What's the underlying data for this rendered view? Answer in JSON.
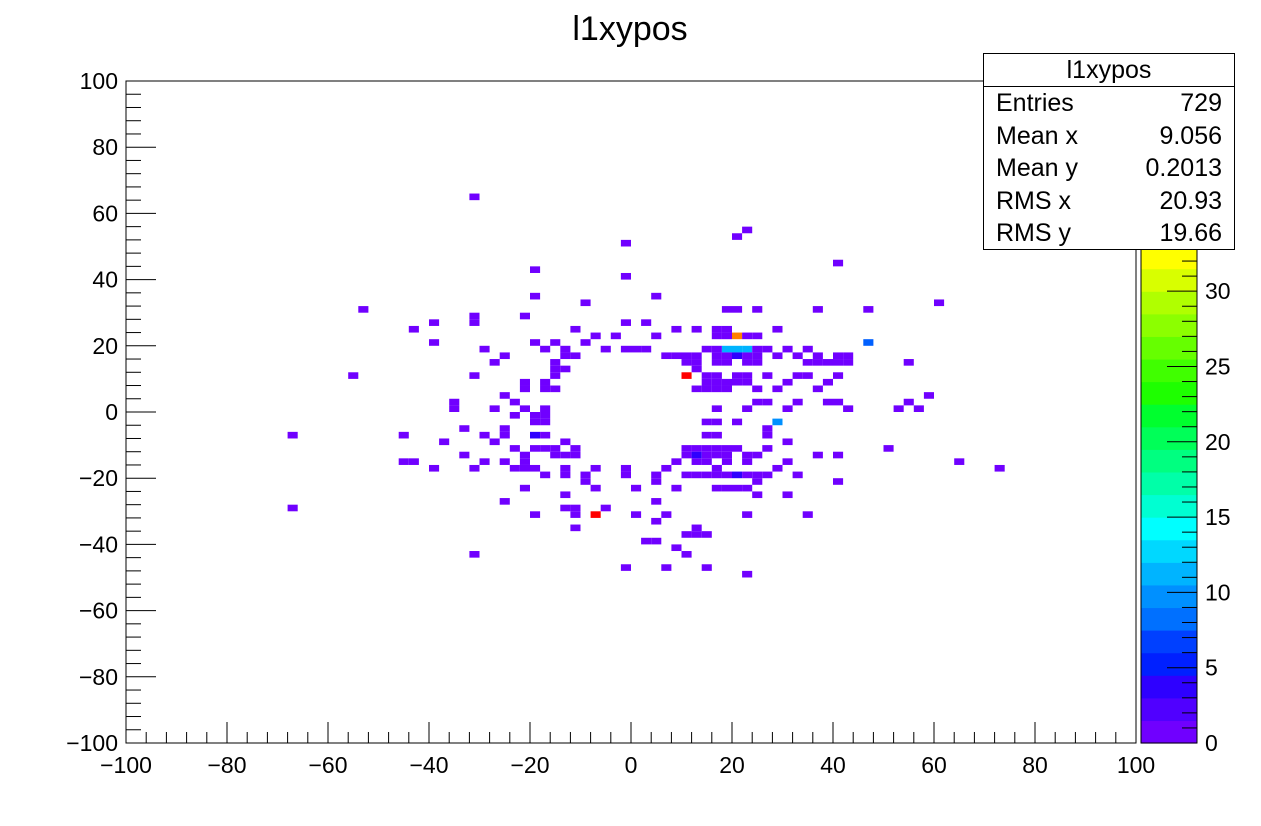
{
  "chart_data": {
    "type": "heatmap",
    "title": "l1xypos",
    "xlim": [
      -100,
      100
    ],
    "ylim": [
      -100,
      100
    ],
    "x_ticks": [
      "−100",
      "−80",
      "−60",
      "−40",
      "−20",
      "0",
      "20",
      "40",
      "60",
      "80",
      "100"
    ],
    "y_ticks": [
      "−100",
      "−80",
      "−60",
      "−40",
      "−20",
      "0",
      "20",
      "40",
      "60",
      "80",
      "100"
    ],
    "colorbar": {
      "range": [
        0,
        33
      ],
      "ticks": [
        "0",
        "5",
        "10",
        "15",
        "20",
        "25",
        "30"
      ],
      "palette": [
        "#7000ff",
        "#5000ff",
        "#2e00ff",
        "#0020ff",
        "#0040ff",
        "#0070ff",
        "#0090ff",
        "#00b4ff",
        "#00d8ff",
        "#00ffff",
        "#00ffd2",
        "#00ffa8",
        "#00ff80",
        "#00ff58",
        "#00ff2e",
        "#1eff00",
        "#40ff00",
        "#66ff00",
        "#8cff00",
        "#b0ff00",
        "#d8ff00",
        "#ffff00"
      ]
    },
    "bin_width": 2,
    "bins": [
      [
        -31,
        65
      ],
      [
        23,
        55
      ],
      [
        21,
        53
      ],
      [
        -1,
        51
      ],
      [
        41,
        45
      ],
      [
        -19,
        43
      ],
      [
        -1,
        41
      ],
      [
        -19,
        35
      ],
      [
        -9,
        33
      ],
      [
        5,
        35
      ],
      [
        -53,
        31
      ],
      [
        -21,
        29
      ],
      [
        -31,
        29
      ],
      [
        19,
        31
      ],
      [
        21,
        31
      ],
      [
        25,
        31
      ],
      [
        37,
        31
      ],
      [
        47,
        31
      ],
      [
        61,
        33
      ],
      [
        -39,
        27
      ],
      [
        -43,
        25
      ],
      [
        -31,
        27
      ],
      [
        -11,
        25
      ],
      [
        -1,
        27
      ],
      [
        3,
        27
      ],
      [
        9,
        25
      ],
      [
        13,
        25
      ],
      [
        17,
        25
      ],
      [
        19,
        25
      ],
      [
        29,
        25
      ],
      [
        -39,
        21
      ],
      [
        -15,
        21
      ],
      [
        -7,
        23
      ],
      [
        -3,
        23
      ],
      [
        5,
        23
      ],
      [
        17,
        23
      ],
      [
        19,
        23
      ],
      [
        21,
        23,
        "o"
      ],
      [
        23,
        23
      ],
      [
        25,
        23
      ],
      [
        -29,
        19
      ],
      [
        -19,
        21
      ],
      [
        -9,
        21
      ],
      [
        -5,
        19
      ],
      [
        3,
        19
      ],
      [
        15,
        19
      ],
      [
        17,
        19
      ],
      [
        19,
        19,
        "c"
      ],
      [
        21,
        19,
        "c"
      ],
      [
        23,
        19,
        "c"
      ],
      [
        25,
        19
      ],
      [
        27,
        19
      ],
      [
        31,
        19
      ],
      [
        35,
        19
      ],
      [
        47,
        21,
        "b2"
      ],
      [
        -25,
        17
      ],
      [
        -17,
        19
      ],
      [
        -13,
        19
      ],
      [
        -1,
        19
      ],
      [
        1,
        19
      ],
      [
        7,
        17
      ],
      [
        9,
        17
      ],
      [
        11,
        17
      ],
      [
        13,
        17
      ],
      [
        17,
        17
      ],
      [
        19,
        17
      ],
      [
        21,
        17,
        "b1"
      ],
      [
        23,
        17
      ],
      [
        25,
        17
      ],
      [
        29,
        17
      ],
      [
        33,
        17
      ],
      [
        37,
        17
      ],
      [
        41,
        17
      ],
      [
        43,
        17
      ],
      [
        55,
        15
      ],
      [
        -27,
        15
      ],
      [
        -15,
        15
      ],
      [
        -13,
        17
      ],
      [
        -11,
        17
      ],
      [
        11,
        15
      ],
      [
        13,
        15
      ],
      [
        17,
        15
      ],
      [
        19,
        15
      ],
      [
        23,
        15
      ],
      [
        25,
        15
      ],
      [
        35,
        15
      ],
      [
        37,
        15
      ],
      [
        39,
        15
      ],
      [
        41,
        15
      ],
      [
        43,
        15
      ],
      [
        -55,
        11
      ],
      [
        -31,
        11
      ],
      [
        -15,
        13
      ],
      [
        -13,
        13
      ],
      [
        11,
        11,
        "r"
      ],
      [
        13,
        13
      ],
      [
        15,
        11
      ],
      [
        17,
        11
      ],
      [
        21,
        11
      ],
      [
        23,
        11
      ],
      [
        27,
        11
      ],
      [
        33,
        11
      ],
      [
        35,
        11
      ],
      [
        41,
        11
      ],
      [
        -21,
        9
      ],
      [
        -17,
        9
      ],
      [
        -15,
        11
      ],
      [
        15,
        9
      ],
      [
        17,
        9
      ],
      [
        19,
        9
      ],
      [
        21,
        9
      ],
      [
        23,
        9
      ],
      [
        31,
        9
      ],
      [
        39,
        9
      ],
      [
        -25,
        5
      ],
      [
        -21,
        7
      ],
      [
        -17,
        7
      ],
      [
        -15,
        7
      ],
      [
        13,
        7
      ],
      [
        15,
        7
      ],
      [
        17,
        7
      ],
      [
        19,
        7
      ],
      [
        25,
        7
      ],
      [
        29,
        7
      ],
      [
        37,
        7
      ],
      [
        59,
        5
      ],
      [
        -35,
        3
      ],
      [
        -27,
        1
      ],
      [
        -23,
        3
      ],
      [
        -21,
        1
      ],
      [
        -17,
        1
      ],
      [
        -35,
        1
      ],
      [
        25,
        3
      ],
      [
        27,
        3
      ],
      [
        33,
        3
      ],
      [
        39,
        3
      ],
      [
        41,
        3
      ],
      [
        43,
        1
      ],
      [
        55,
        3
      ],
      [
        57,
        1
      ],
      [
        -23,
        -1
      ],
      [
        -19,
        -1
      ],
      [
        -17,
        -1
      ],
      [
        17,
        1
      ],
      [
        23,
        1
      ],
      [
        31,
        1
      ],
      [
        53,
        1
      ],
      [
        -33,
        -5
      ],
      [
        -25,
        -5
      ],
      [
        -19,
        -3
      ],
      [
        -17,
        -3
      ],
      [
        15,
        -3
      ],
      [
        17,
        -3
      ],
      [
        21,
        -3
      ],
      [
        29,
        -3,
        "c2"
      ],
      [
        27,
        -5
      ],
      [
        -67,
        -7
      ],
      [
        -45,
        -7
      ],
      [
        -29,
        -7
      ],
      [
        -25,
        -7
      ],
      [
        -19,
        -7,
        "b1"
      ],
      [
        -17,
        -7
      ],
      [
        15,
        -7
      ],
      [
        17,
        -7
      ],
      [
        27,
        -7
      ],
      [
        -37,
        -9
      ],
      [
        -27,
        -9
      ],
      [
        -13,
        -9
      ],
      [
        -23,
        -11
      ],
      [
        -19,
        -11
      ],
      [
        -17,
        -11
      ],
      [
        -15,
        -11
      ],
      [
        -11,
        -11
      ],
      [
        31,
        -9
      ],
      [
        -33,
        -13
      ],
      [
        -21,
        -13
      ],
      [
        -15,
        -13
      ],
      [
        -13,
        -13
      ],
      [
        -11,
        -13
      ],
      [
        11,
        -11
      ],
      [
        13,
        -11
      ],
      [
        15,
        -11
      ],
      [
        17,
        -11
      ],
      [
        19,
        -11
      ],
      [
        21,
        -11
      ],
      [
        27,
        -11
      ],
      [
        51,
        -11
      ],
      [
        -29,
        -15
      ],
      [
        -25,
        -15
      ],
      [
        -21,
        -15
      ],
      [
        11,
        -13
      ],
      [
        13,
        -13,
        "b1"
      ],
      [
        15,
        -13
      ],
      [
        17,
        -13
      ],
      [
        19,
        -13
      ],
      [
        23,
        -13
      ],
      [
        25,
        -13
      ],
      [
        31,
        -15
      ],
      [
        37,
        -13
      ],
      [
        41,
        -13
      ],
      [
        -45,
        -15
      ],
      [
        -43,
        -15
      ],
      [
        -39,
        -17
      ],
      [
        -31,
        -17
      ],
      [
        -19,
        -17
      ],
      [
        -7,
        -17
      ],
      [
        -1,
        -17
      ],
      [
        7,
        -17
      ],
      [
        9,
        -15
      ],
      [
        13,
        -15
      ],
      [
        15,
        -15
      ],
      [
        17,
        -17
      ],
      [
        19,
        -15
      ],
      [
        23,
        -15
      ],
      [
        29,
        -17
      ],
      [
        65,
        -15
      ],
      [
        73,
        -17
      ],
      [
        -23,
        -17
      ],
      [
        -21,
        -17
      ],
      [
        -13,
        -17
      ],
      [
        -17,
        -19
      ],
      [
        -13,
        -19
      ],
      [
        -9,
        -19
      ],
      [
        -1,
        -19
      ],
      [
        5,
        -19
      ],
      [
        11,
        -19
      ],
      [
        13,
        -19
      ],
      [
        15,
        -19
      ],
      [
        17,
        -19
      ],
      [
        19,
        -19
      ],
      [
        21,
        -19,
        "b1"
      ],
      [
        23,
        -19
      ],
      [
        25,
        -19
      ],
      [
        27,
        -19
      ],
      [
        33,
        -19
      ],
      [
        41,
        -21
      ],
      [
        -21,
        -23
      ],
      [
        -9,
        -21
      ],
      [
        -7,
        -23
      ],
      [
        1,
        -23
      ],
      [
        5,
        -21
      ],
      [
        9,
        -23
      ],
      [
        17,
        -23
      ],
      [
        19,
        -23
      ],
      [
        21,
        -23
      ],
      [
        23,
        -23
      ],
      [
        25,
        -21
      ],
      [
        31,
        -25
      ],
      [
        -25,
        -27
      ],
      [
        -13,
        -25
      ],
      [
        5,
        -27
      ],
      [
        25,
        -25
      ],
      [
        -67,
        -29
      ],
      [
        -13,
        -29
      ],
      [
        -11,
        -29
      ],
      [
        -7,
        -31,
        "r"
      ],
      [
        -5,
        -29
      ],
      [
        1,
        -31
      ],
      [
        7,
        -31
      ],
      [
        -19,
        -31
      ],
      [
        -11,
        -31
      ],
      [
        5,
        -33
      ],
      [
        23,
        -31
      ],
      [
        35,
        -31
      ],
      [
        -11,
        -35
      ],
      [
        13,
        -35
      ],
      [
        11,
        -37
      ],
      [
        13,
        -37
      ],
      [
        15,
        -37
      ],
      [
        3,
        -39
      ],
      [
        5,
        -39
      ],
      [
        9,
        -41
      ],
      [
        11,
        -43
      ],
      [
        -31,
        -43
      ],
      [
        -1,
        -47
      ],
      [
        7,
        -47
      ],
      [
        15,
        -47
      ],
      [
        23,
        -49
      ]
    ]
  },
  "stats": {
    "title": "l1xypos",
    "rows": [
      {
        "label": "Entries",
        "value": "729"
      },
      {
        "label": "Mean x",
        "value": "9.056"
      },
      {
        "label": "Mean y",
        "value": "0.2013"
      },
      {
        "label": "RMS x",
        "value": "20.93"
      },
      {
        "label": "RMS y",
        "value": "19.66"
      }
    ]
  },
  "colors": {
    "default_bin": "#7000ff",
    "b1": "#2e00ff",
    "b2": "#0060ff",
    "c": "#00b4ff",
    "c2": "#0090ff",
    "o": "#ff8000",
    "r": "#ff0000"
  }
}
